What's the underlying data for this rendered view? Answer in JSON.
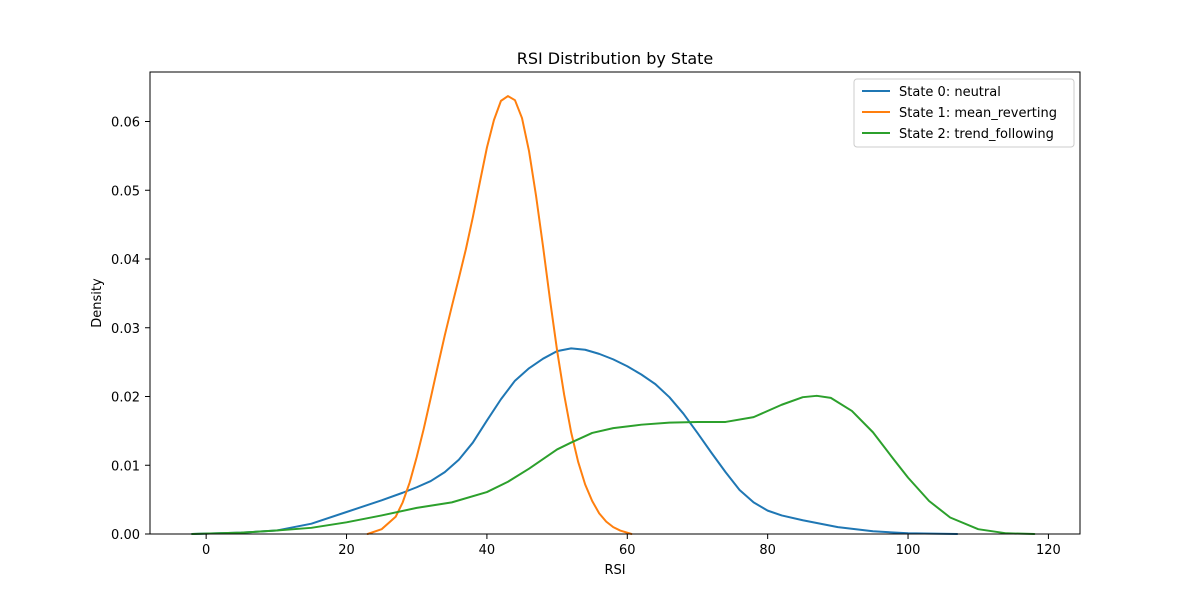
{
  "chart_data": {
    "type": "line",
    "title": "RSI Distribution by State",
    "xlabel": "RSI",
    "ylabel": "Density",
    "xlim": [
      -8,
      124.5
    ],
    "ylim": [
      0,
      0.0672
    ],
    "xticks": [
      0,
      20,
      40,
      60,
      80,
      100,
      120
    ],
    "yticks": [
      0.0,
      0.01,
      0.02,
      0.03,
      0.04,
      0.05,
      0.06
    ],
    "xtick_labels": [
      "0",
      "20",
      "40",
      "60",
      "80",
      "100",
      "120"
    ],
    "ytick_labels": [
      "0.00",
      "0.01",
      "0.02",
      "0.03",
      "0.04",
      "0.05",
      "0.06"
    ],
    "grid": false,
    "legend_position": "top-right",
    "series": [
      {
        "name": "State 0: neutral",
        "color": "#1f77b4",
        "x": [
          -2,
          5,
          10,
          15,
          20,
          25,
          28,
          30,
          32,
          34,
          36,
          38,
          40,
          42,
          44,
          46,
          48,
          50,
          52,
          54,
          56,
          58,
          60,
          62,
          64,
          66,
          68,
          70,
          72,
          74,
          76,
          78,
          80,
          82,
          85,
          90,
          95,
          100,
          107
        ],
        "values": [
          0.0,
          0.0002,
          0.0005,
          0.0015,
          0.0032,
          0.0049,
          0.006,
          0.0068,
          0.0077,
          0.009,
          0.0108,
          0.0133,
          0.0165,
          0.0196,
          0.0223,
          0.0241,
          0.0255,
          0.0266,
          0.027,
          0.0268,
          0.0262,
          0.0254,
          0.0244,
          0.0232,
          0.0218,
          0.0199,
          0.0175,
          0.0147,
          0.0118,
          0.009,
          0.0064,
          0.0046,
          0.0034,
          0.0027,
          0.002,
          0.001,
          0.0004,
          0.0001,
          0.0
        ]
      },
      {
        "name": "State 1: mean_reverting",
        "color": "#ff7f0e",
        "x": [
          23,
          25,
          27,
          28,
          29,
          30,
          31,
          32,
          33,
          34,
          35,
          36,
          37,
          38,
          39,
          40,
          41,
          42,
          43,
          44,
          45,
          46,
          47,
          48,
          49,
          50,
          51,
          52,
          53,
          54,
          55,
          56,
          57,
          58,
          59,
          60.6
        ],
        "values": [
          0.0,
          0.0007,
          0.0025,
          0.0046,
          0.0075,
          0.0112,
          0.0153,
          0.0198,
          0.0244,
          0.0289,
          0.0331,
          0.0372,
          0.0414,
          0.0461,
          0.0512,
          0.0562,
          0.0602,
          0.063,
          0.0637,
          0.0631,
          0.0605,
          0.0557,
          0.0492,
          0.0418,
          0.034,
          0.0267,
          0.0203,
          0.0148,
          0.0105,
          0.0072,
          0.0048,
          0.003,
          0.0018,
          0.001,
          0.0005,
          0.0
        ]
      },
      {
        "name": "State 2: trend_following",
        "color": "#2ca02c",
        "x": [
          -2,
          5,
          10,
          15,
          20,
          25,
          30,
          35,
          40,
          43,
          46,
          50,
          52,
          55,
          58,
          62,
          66,
          70,
          74,
          78,
          82,
          85,
          87,
          89,
          92,
          95,
          98,
          100,
          103,
          106,
          110,
          114,
          118
        ],
        "values": [
          0.0,
          0.0002,
          0.0005,
          0.0009,
          0.0017,
          0.0027,
          0.0038,
          0.0046,
          0.0061,
          0.0076,
          0.0095,
          0.0123,
          0.0133,
          0.0147,
          0.0154,
          0.0159,
          0.0162,
          0.0163,
          0.0163,
          0.017,
          0.0188,
          0.0199,
          0.0201,
          0.0198,
          0.0179,
          0.0148,
          0.0108,
          0.0082,
          0.0048,
          0.0024,
          0.0007,
          0.0001,
          0.0
        ]
      }
    ]
  }
}
